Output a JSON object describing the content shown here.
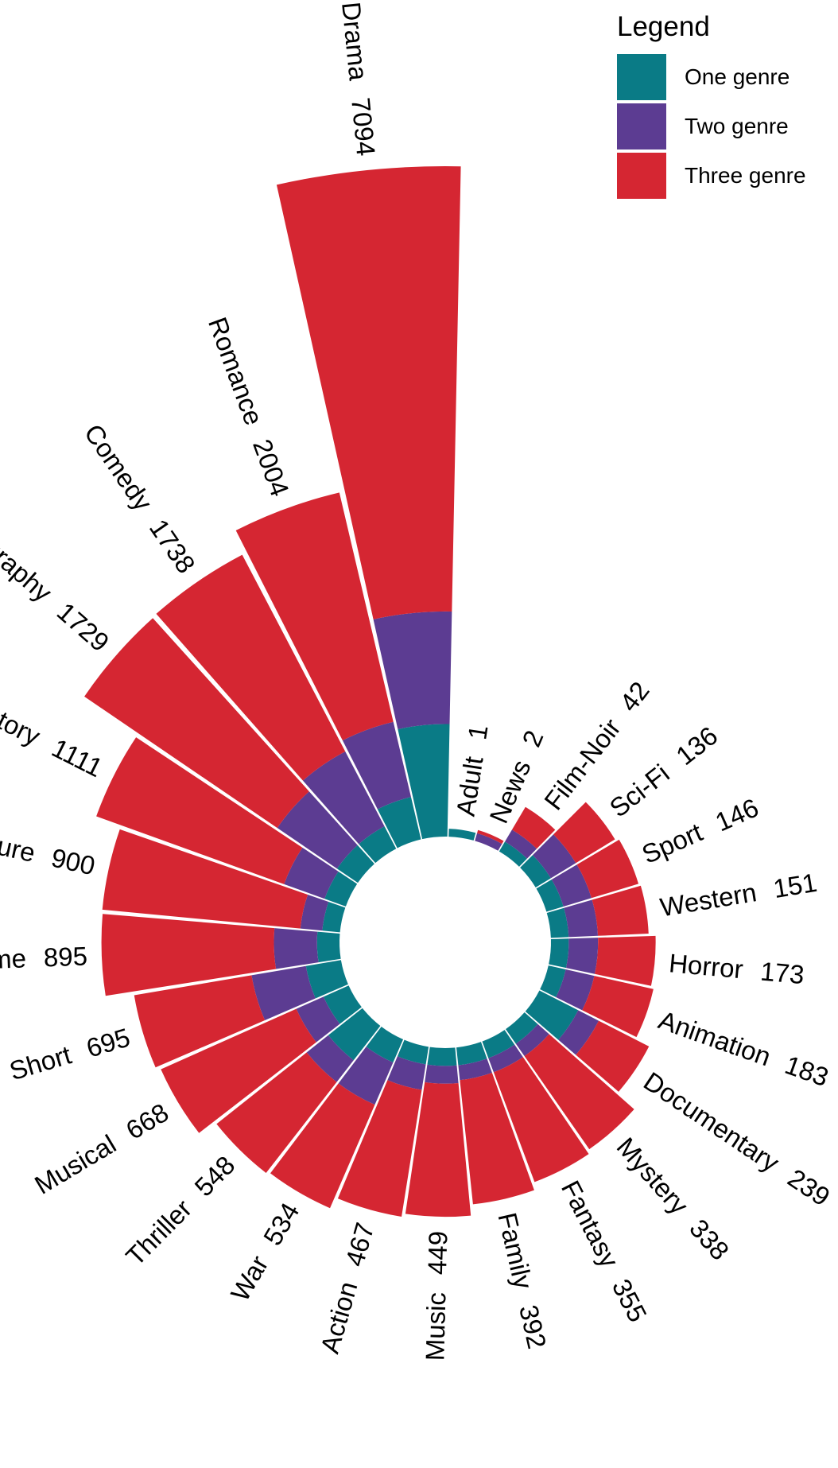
{
  "chart_data": {
    "type": "bar",
    "subtype": "circular-stacked-bar",
    "title": "",
    "xlabel": "",
    "ylabel": "",
    "legend": {
      "title": "Legend",
      "position": "top-right",
      "entries": [
        {
          "label": "One genre",
          "color": "#0a7b86"
        },
        {
          "label": "Two genre",
          "color": "#5c3c92"
        },
        {
          "label": "Three genre",
          "color": "#d52632"
        }
      ]
    },
    "grid": false,
    "categories": [
      "Drama",
      "Romance",
      "Comedy",
      "Biography",
      "History",
      "Adventure",
      "Crime",
      "Short",
      "Musical",
      "Thriller",
      "War",
      "Action",
      "Music",
      "Family",
      "Fantasy",
      "Mystery",
      "Documentary",
      "Animation",
      "Horror",
      "Western",
      "Sport",
      "Sci-Fi",
      "Film-Noir",
      "News",
      "Adult"
    ],
    "totals": [
      7094,
      2004,
      1738,
      1729,
      1111,
      900,
      895,
      695,
      668,
      548,
      534,
      467,
      449,
      392,
      355,
      338,
      239,
      183,
      173,
      151,
      146,
      136,
      42,
      2,
      1
    ],
    "series": [
      {
        "name": "One genre",
        "values": [
          200,
          30,
          10,
          10,
          8,
          5,
          8,
          20,
          12,
          30,
          10,
          5,
          5,
          5,
          5,
          5,
          30,
          5,
          5,
          5,
          5,
          5,
          2,
          0,
          1
        ]
      },
      {
        "name": "Two genre",
        "values": [
          600,
          200,
          180,
          140,
          60,
          20,
          60,
          110,
          40,
          50,
          70,
          25,
          15,
          12,
          12,
          12,
          40,
          30,
          30,
          30,
          30,
          30,
          8,
          1,
          0
        ]
      },
      {
        "name": "Three genre",
        "values": [
          6294,
          1774,
          1548,
          1579,
          1043,
          875,
          827,
          565,
          616,
          468,
          454,
          437,
          429,
          375,
          338,
          321,
          169,
          148,
          138,
          116,
          111,
          101,
          32,
          1,
          0
        ]
      }
    ]
  }
}
